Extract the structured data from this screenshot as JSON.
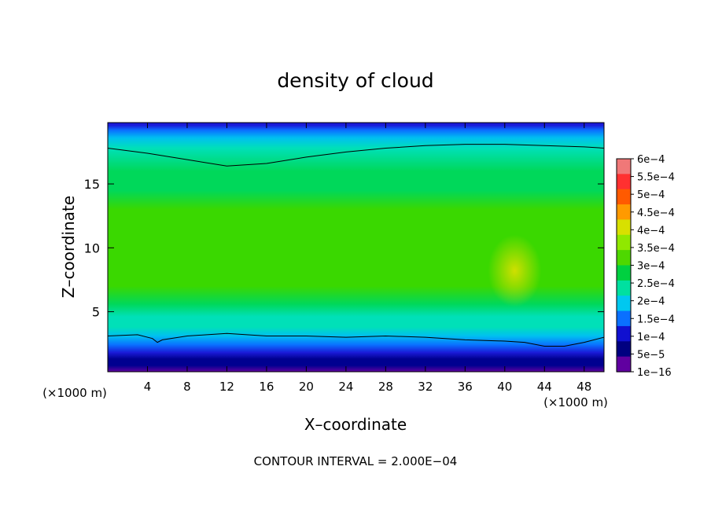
{
  "chart_data": {
    "type": "heatmap",
    "title": "density of cloud",
    "xlabel": "X–coordinate",
    "ylabel": "Z–coordinate",
    "x_unit_label": "(×1000 m)",
    "x_range": [
      0,
      50
    ],
    "y_range": [
      0.3,
      19.8
    ],
    "x_ticks": [
      "4",
      "8",
      "12",
      "16",
      "20",
      "24",
      "28",
      "32",
      "36",
      "40",
      "44",
      "48"
    ],
    "x_tick_values": [
      4,
      8,
      12,
      16,
      20,
      24,
      28,
      32,
      36,
      40,
      44,
      48
    ],
    "y_ticks": [
      "5",
      "10",
      "15"
    ],
    "y_tick_values": [
      5,
      10,
      15
    ],
    "footer": "CONTOUR INTERVAL = 2.000E−04",
    "colorbar": {
      "labels": [
        "6e−4",
        "5.5e−4",
        "5e−4",
        "4.5e−4",
        "4e−4",
        "3.5e−4",
        "3e−4",
        "2.5e−4",
        "2e−4",
        "1.5e−4",
        "1e−4",
        "5e−5",
        "1e−16"
      ],
      "colors": [
        "#f07878",
        "#ff3030",
        "#ff5a00",
        "#ff9a00",
        "#d8e000",
        "#90e800",
        "#4ed800",
        "#00d040",
        "#00e0a0",
        "#00c8f0",
        "#0a70ff",
        "#1010d0",
        "#000080",
        "#6000a0"
      ]
    },
    "contour_lines": [
      {
        "level": "2.000E−04",
        "x": [
          0,
          4,
          8,
          12,
          16,
          20,
          24,
          28,
          32,
          36,
          40,
          44,
          48,
          50
        ],
        "z": [
          17.8,
          17.4,
          16.9,
          16.4,
          16.6,
          17.1,
          17.5,
          17.8,
          18.0,
          18.1,
          18.1,
          18.0,
          17.9,
          17.8
        ]
      },
      {
        "level": "2.000E−04",
        "x": [
          0,
          3,
          4.5,
          5,
          5.5,
          8,
          10,
          12,
          14,
          16,
          20,
          24,
          28,
          32,
          36,
          40,
          42,
          44,
          46,
          48,
          50
        ],
        "z": [
          3.1,
          3.2,
          2.9,
          2.6,
          2.8,
          3.1,
          3.2,
          3.3,
          3.2,
          3.1,
          3.1,
          3.0,
          3.1,
          3.0,
          2.8,
          2.7,
          2.6,
          2.3,
          2.3,
          2.6,
          3.0
        ]
      }
    ],
    "field_ramp_colors": [
      "#6000a0",
      "#000090",
      "#1a1ad8",
      "#0a70ff",
      "#00c0f0",
      "#00e0b8",
      "#00d85a",
      "#3ad800",
      "#6ee000",
      "#90e600"
    ],
    "field_vertical_profile": {
      "z": [
        0.3,
        0.8,
        1.3,
        1.8,
        2.4,
        3.1,
        3.8,
        4.6,
        5.6,
        7.0,
        9.0,
        11.0,
        13.0,
        14.5,
        16.0,
        17.8,
        18.6,
        19.2,
        19.6,
        19.8
      ],
      "level": [
        0,
        0.6,
        1.2,
        2,
        3,
        4,
        4.7,
        5.4,
        6.0,
        6.6,
        7.0,
        7.1,
        6.8,
        6.3,
        5.7,
        4.9,
        4.1,
        3.0,
        2.2,
        1.6
      ]
    },
    "field_max_region": {
      "x": 41,
      "z": 8.2,
      "level": 8.6
    }
  }
}
